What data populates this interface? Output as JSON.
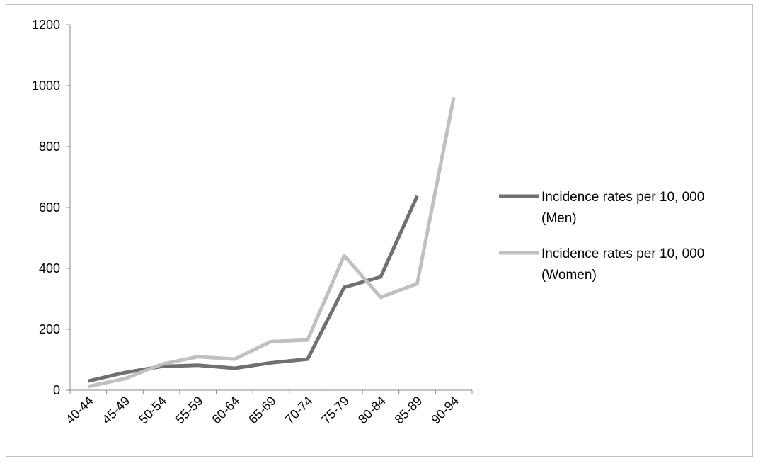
{
  "chart_data": {
    "type": "line",
    "title": "",
    "xlabel": "",
    "ylabel": "",
    "categories": [
      "40-44",
      "45-49",
      "50-54",
      "55-59",
      "60-64",
      "65-69",
      "70-74",
      "75-79",
      "80-84",
      "85-89",
      "90-94"
    ],
    "ylim": [
      0,
      1200
    ],
    "yticks": [
      "0",
      "200",
      "400",
      "600",
      "800",
      "1000",
      "1200"
    ],
    "grid": false,
    "legend_position": "right",
    "series": [
      {
        "name": "Incidence rates per 10, 000 (Men)",
        "legend_lines": [
          "Incidence rates per 10, 000",
          "(Men)"
        ],
        "color": "#707070",
        "values": [
          30,
          58,
          78,
          82,
          72,
          90,
          102,
          338,
          372,
          638,
          null
        ]
      },
      {
        "name": "Incidence rates per 10, 000 (Women)",
        "legend_lines": [
          "Incidence rates per 10, 000",
          "(Women)"
        ],
        "color": "#c0c0c0",
        "values": [
          12,
          38,
          85,
          110,
          102,
          160,
          165,
          442,
          305,
          350,
          962
        ]
      }
    ]
  }
}
